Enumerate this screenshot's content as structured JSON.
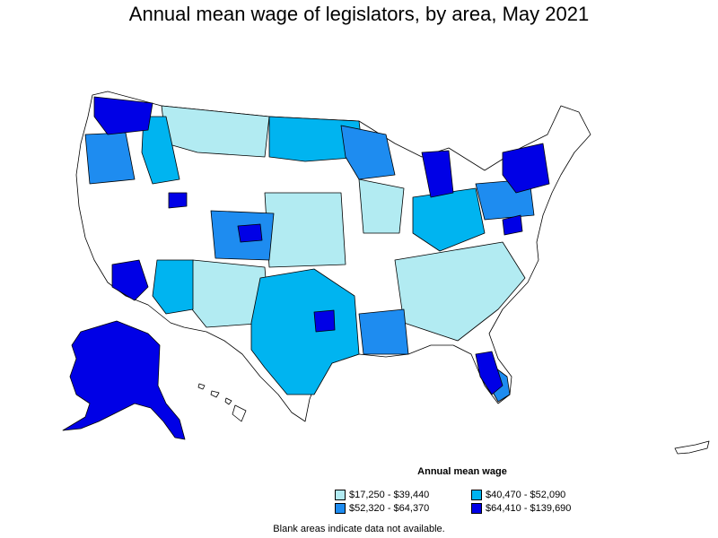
{
  "title": "Annual mean wage of legislators, by area, May 2021",
  "legend": {
    "title": "Annual mean wage",
    "items": [
      {
        "label": "$17,250 - $39,440",
        "color": "#b2ebf2"
      },
      {
        "label": "$40,470 - $52,090",
        "color": "#00b4f0"
      },
      {
        "label": "$52,320 - $64,370",
        "color": "#1e8cf0"
      },
      {
        "label": "$64,410 - $139,690",
        "color": "#0000e6"
      }
    ]
  },
  "note": "Blank areas indicate data not available.",
  "colors": {
    "blank": "#ffffff",
    "border": "#000000"
  }
}
